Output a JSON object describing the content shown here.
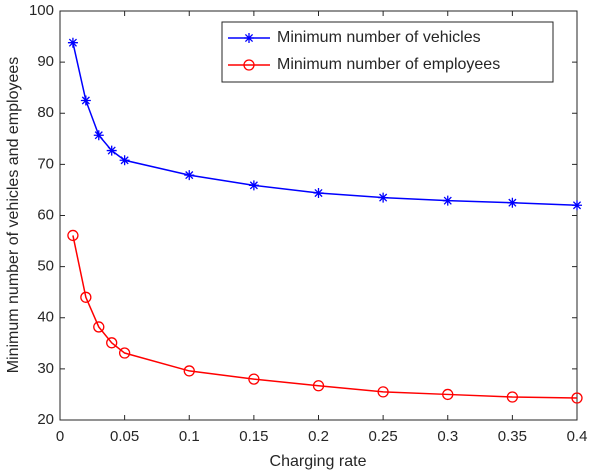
{
  "chart_data": {
    "type": "line",
    "x_label": "Charging rate",
    "y_label": "Minimum number of vehicles and employees",
    "x": [
      0.01,
      0.02,
      0.03,
      0.04,
      0.05,
      0.1,
      0.15,
      0.2,
      0.25,
      0.3,
      0.35,
      0.4
    ],
    "series": [
      {
        "name": "Minimum number of vehicles",
        "color": "#0000ff",
        "marker": "asterisk",
        "values": [
          93.8,
          82.5,
          75.7,
          72.7,
          70.8,
          67.9,
          65.9,
          64.4,
          63.5,
          62.9,
          62.5,
          62.0
        ]
      },
      {
        "name": "Minimum number of employees",
        "color": "#ff0000",
        "marker": "circle",
        "values": [
          56.1,
          44.0,
          38.2,
          35.1,
          33.1,
          29.6,
          28.0,
          26.7,
          25.5,
          25.0,
          24.5,
          24.3
        ]
      }
    ],
    "xlim": [
      0,
      0.4
    ],
    "xticks": [
      0,
      0.05,
      0.1,
      0.15,
      0.2,
      0.25,
      0.3,
      0.35,
      0.4
    ],
    "ylim": [
      20,
      100
    ],
    "yticks": [
      20,
      30,
      40,
      50,
      60,
      70,
      80,
      90,
      100
    ],
    "legend": "upper right"
  }
}
